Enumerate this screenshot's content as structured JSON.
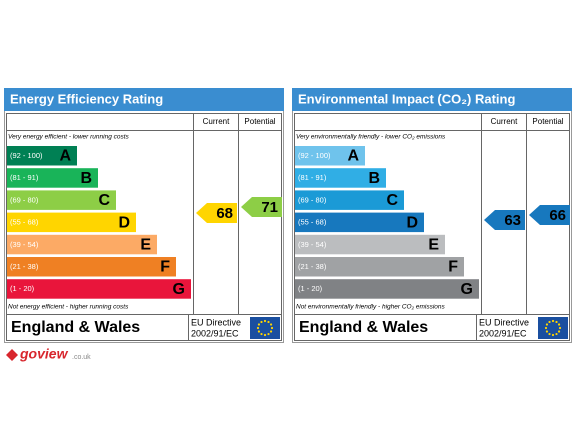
{
  "panels": [
    {
      "title": "Energy Efficiency Rating",
      "columns": [
        "Current",
        "Potential"
      ],
      "top_note": "Very energy efficient - lower running costs",
      "bottom_note": "Not energy efficient - higher running costs",
      "bands": [
        {
          "range": "(92 - 100)",
          "letter": "A",
          "color": "#008054"
        },
        {
          "range": "(81 - 91)",
          "letter": "B",
          "color": "#19b459"
        },
        {
          "range": "(69 - 80)",
          "letter": "C",
          "color": "#8dce46"
        },
        {
          "range": "(55 - 68)",
          "letter": "D",
          "color": "#ffd500"
        },
        {
          "range": "(39 - 54)",
          "letter": "E",
          "color": "#fcaa65"
        },
        {
          "range": "(21 - 38)",
          "letter": "F",
          "color": "#ef8023"
        },
        {
          "range": "(1 - 20)",
          "letter": "G",
          "color": "#e9153b"
        }
      ],
      "current": 68,
      "current_color": "#ffd500",
      "potential": 71,
      "potential_color": "#8dce46",
      "country": "England & Wales",
      "directive": "EU Directive",
      "directive_code": "2002/91/EC"
    },
    {
      "title": "Environmental Impact (CO₂) Rating",
      "columns": [
        "Current",
        "Potential"
      ],
      "top_note": "Very environmentally friendly - lower CO₂ emissions",
      "bottom_note": "Not environmentally friendly - higher CO₂ emissions",
      "bands": [
        {
          "range": "(92 - 100)",
          "letter": "A",
          "color": "#6fc3ec"
        },
        {
          "range": "(81 - 91)",
          "letter": "B",
          "color": "#30aee5"
        },
        {
          "range": "(69 - 80)",
          "letter": "C",
          "color": "#1b9ad6"
        },
        {
          "range": "(55 - 68)",
          "letter": "D",
          "color": "#1778be"
        },
        {
          "range": "(39 - 54)",
          "letter": "E",
          "color": "#bbbdbf"
        },
        {
          "range": "(21 - 38)",
          "letter": "F",
          "color": "#a0a2a4"
        },
        {
          "range": "(1 - 20)",
          "letter": "G",
          "color": "#808285"
        }
      ],
      "current": 63,
      "current_color": "#1778be",
      "potential": 66,
      "potential_color": "#1778be",
      "country": "England & Wales",
      "directive": "EU Directive",
      "directive_code": "2002/91/EC"
    }
  ],
  "logo": {
    "name": "goview",
    "suffix": ".co.uk"
  }
}
